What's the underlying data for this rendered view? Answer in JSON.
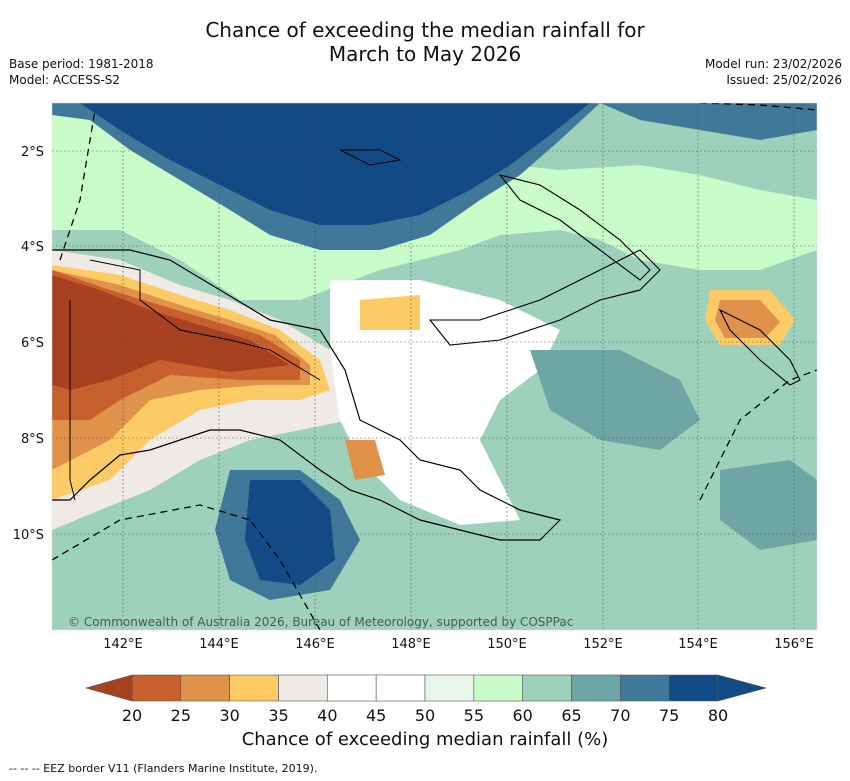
{
  "title_line1": "Chance of exceeding the median rainfall for",
  "title_line2": "March to May 2026",
  "meta": {
    "base_period": "Base period: 1981-2018",
    "model": "Model: ACCESS-S2",
    "model_run": "Model run: 23/02/2026",
    "issued": "Issued: 25/02/2026"
  },
  "map": {
    "lon_ticks": [
      "142°E",
      "144°E",
      "146°E",
      "148°E",
      "150°E",
      "152°E",
      "154°E",
      "156°E"
    ],
    "lat_ticks": [
      "2°S",
      "4°S",
      "6°S",
      "8°S",
      "10°S"
    ],
    "copyright": "© Commonwealth of Australia 2026, Bureau of Meteorology, supported by COSPPac"
  },
  "colorbar": {
    "ticks": [
      "20",
      "25",
      "30",
      "35",
      "40",
      "45",
      "50",
      "55",
      "60",
      "65",
      "70",
      "75",
      "80"
    ],
    "colors": [
      "#a8411f",
      "#c8602e",
      "#e0924a",
      "#fdcb66",
      "#efeae6",
      "#ffffff",
      "#ffffff",
      "#e8f7e9",
      "#c9fcc9",
      "#9dd1bb",
      "#6ea6a6",
      "#3f7898",
      "#114a85"
    ],
    "title": "Chance of exceeding median rainfall (%)"
  },
  "footnote": "--  --  -- EEZ border V11 (Flanders Marine Institute, 2019)."
}
